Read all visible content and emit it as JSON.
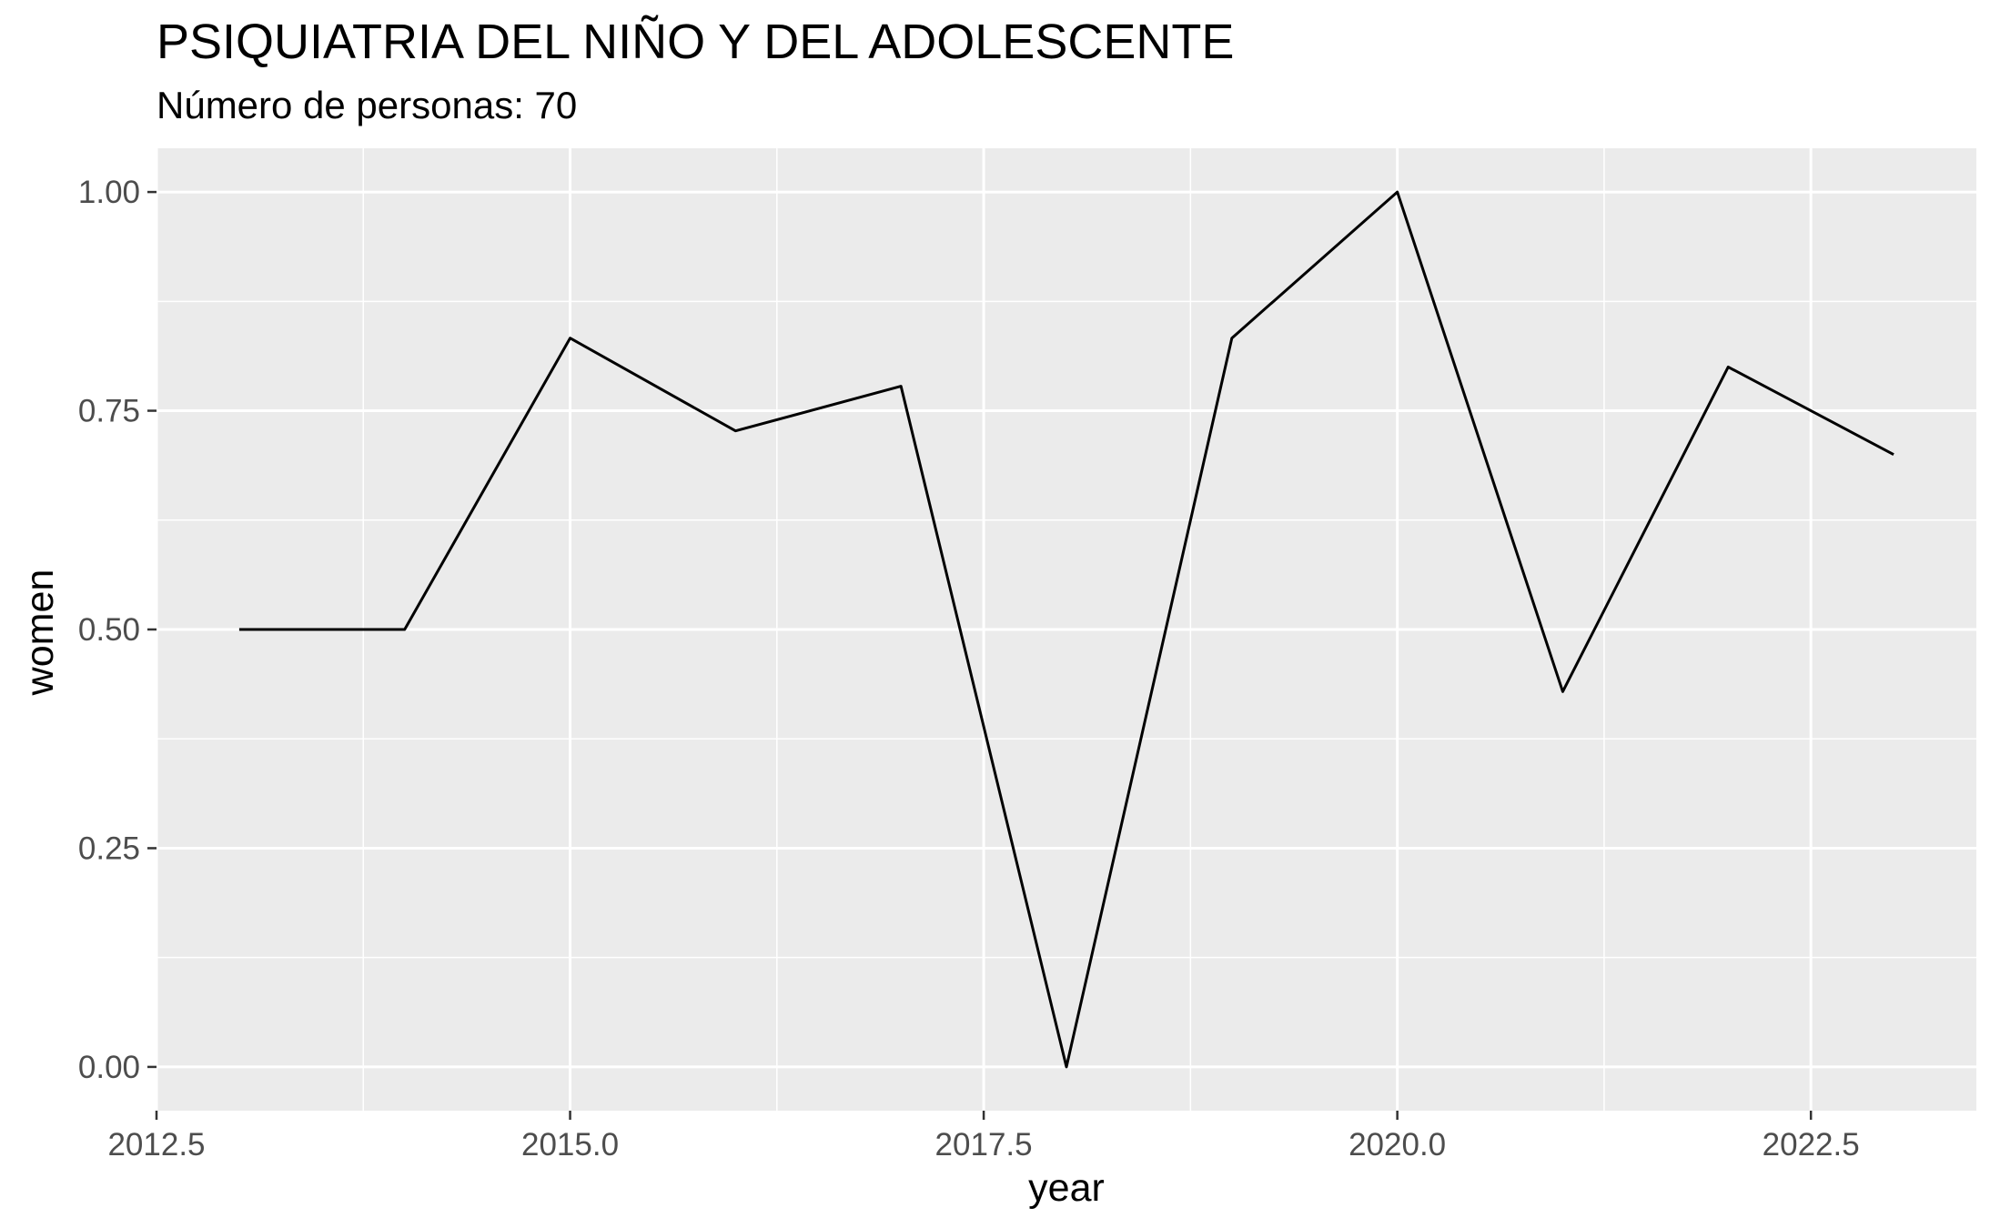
{
  "chart_data": {
    "type": "line",
    "title": "PSIQUIATRIA DEL NIÑO Y DEL ADOLESCENTE",
    "subtitle": "Número de personas: 70",
    "xlabel": "year",
    "ylabel": "women",
    "x": [
      2013,
      2014,
      2015,
      2016,
      2017,
      2018,
      2019,
      2020,
      2021,
      2022,
      2023
    ],
    "series": [
      {
        "values": [
          0.5,
          0.5,
          0.833,
          0.727,
          0.778,
          0.0,
          0.833,
          1.0,
          0.429,
          0.8,
          0.7
        ]
      }
    ],
    "xlim": [
      2012.5,
      2023.5
    ],
    "ylim": [
      -0.05,
      1.05
    ],
    "x_ticks": [
      2012.5,
      2015.0,
      2017.5,
      2020.0,
      2022.5
    ],
    "x_tick_labels": [
      "2012.5",
      "2015.0",
      "2017.5",
      "2020.0",
      "2022.5"
    ],
    "y_ticks": [
      0.0,
      0.25,
      0.5,
      0.75,
      1.0
    ],
    "y_tick_labels": [
      "0.00",
      "0.25",
      "0.50",
      "0.75",
      "1.00"
    ],
    "grid": true,
    "colors": {
      "panel": "#EBEBEB",
      "grid": "#FFFFFF",
      "line": "#000000",
      "tick_text": "#4D4D4D"
    }
  }
}
